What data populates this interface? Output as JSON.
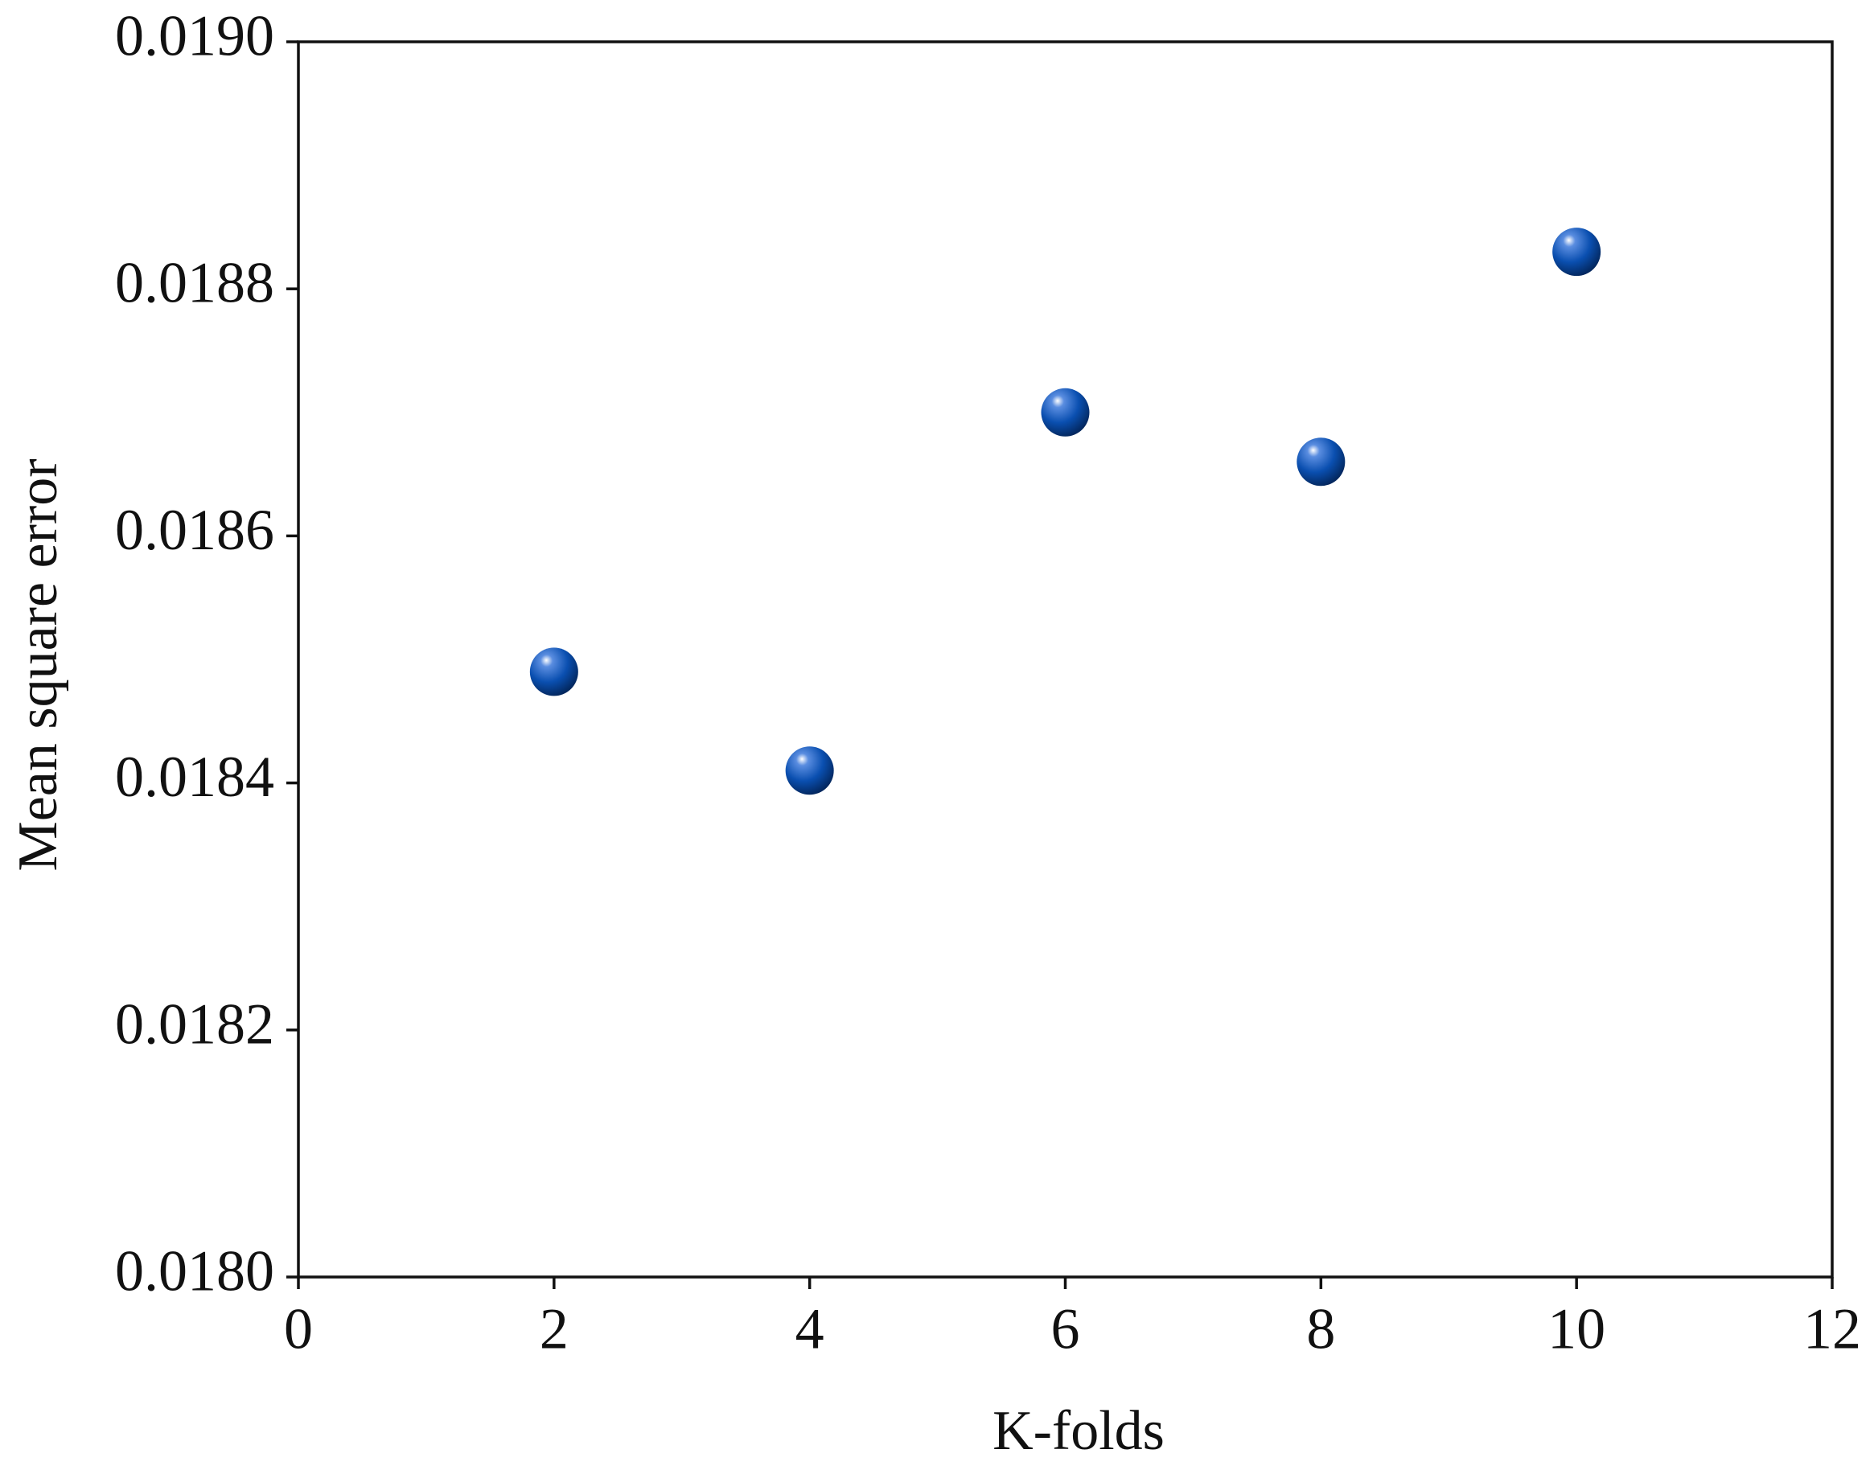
{
  "chart_data": {
    "type": "scatter",
    "xlabel": "K-folds",
    "ylabel": "Mean square error",
    "series": [
      {
        "color": "#0a4fb0",
        "x": [
          2,
          4,
          6,
          8,
          10
        ],
        "values": [
          0.01849,
          0.01841,
          0.0187,
          0.01866,
          0.01883
        ]
      }
    ],
    "xlim": [
      0,
      12
    ],
    "xticks": [
      0,
      2,
      4,
      6,
      8,
      10,
      12
    ],
    "ylim": [
      0.018,
      0.019
    ],
    "yticks": [
      {
        "value": 0.018,
        "label": "0.0180"
      },
      0.0182,
      0.0184,
      0.0186,
      0.0188,
      {
        "value": 0.019,
        "label": "0.0190"
      }
    ],
    "grid": false
  }
}
